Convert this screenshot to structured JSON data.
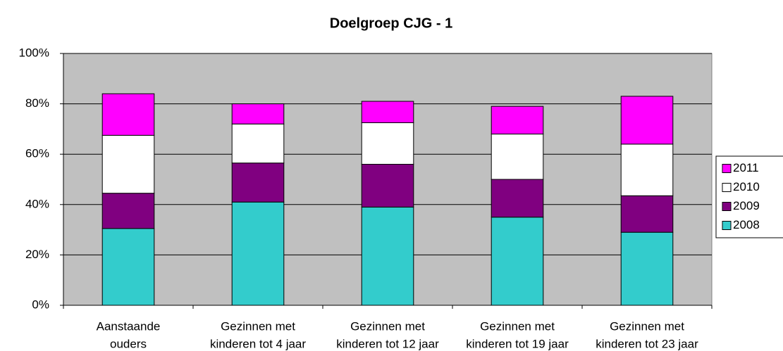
{
  "chart_data": {
    "type": "stacked_bar",
    "title": "Doelgroep CJG - 1",
    "categories": [
      [
        "Aanstaande",
        "ouders"
      ],
      [
        "Gezinnen met",
        "kinderen tot 4 jaar"
      ],
      [
        "Gezinnen met",
        "kinderen tot 12 jaar"
      ],
      [
        "Gezinnen met",
        "kinderen tot 19 jaar"
      ],
      [
        "Gezinnen met",
        "kinderen tot 23 jaar"
      ]
    ],
    "series": [
      {
        "name": "2008",
        "color": "#33cccc",
        "values": [
          30.5,
          41,
          39,
          35,
          29
        ]
      },
      {
        "name": "2009",
        "color": "#800080",
        "values": [
          14,
          15.5,
          17,
          15,
          14.5
        ]
      },
      {
        "name": "2010",
        "color": "#ffffff",
        "values": [
          23,
          15.5,
          16.5,
          18,
          20.5
        ]
      },
      {
        "name": "2011",
        "color": "#ff00ff",
        "values": [
          16.5,
          8,
          8.5,
          11,
          19
        ]
      }
    ],
    "ylim": [
      0,
      100
    ],
    "yticks": [
      {
        "value": 0,
        "label": "0%"
      },
      {
        "value": 20,
        "label": "20%"
      },
      {
        "value": 40,
        "label": "40%"
      },
      {
        "value": 60,
        "label": "60%"
      },
      {
        "value": 80,
        "label": "80%"
      },
      {
        "value": 100,
        "label": "100%"
      }
    ],
    "grid": true,
    "legend": "right"
  }
}
